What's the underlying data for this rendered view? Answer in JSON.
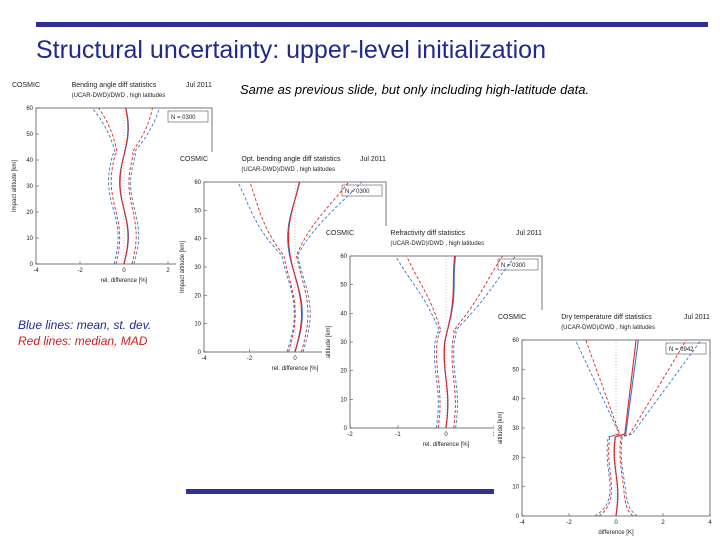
{
  "title": "Structural uncertainty: upper-level initialization",
  "subtitle": "Same as previous slide, but only including high-latitude data.",
  "legend": {
    "blue": "Blue lines: mean, st. dev.",
    "red": "Red lines: median, MAD"
  },
  "colors": {
    "accent": "#2e3192",
    "blue_series": "#3a78c8",
    "red_series": "#d8282b"
  },
  "panels": [
    {
      "id": "p1",
      "label": "COSMIC",
      "title": "Bending angle diff statistics",
      "date": "Jul 2011",
      "sub": "(UCAR-DWD)/DWD , high latitudes",
      "n": "N = 0300",
      "ylabel": "Impact altitude [km]",
      "xlabel": "rel. difference [%]",
      "yticks": [
        "0",
        "10",
        "20",
        "30",
        "40",
        "50",
        "60"
      ],
      "xticks": [
        "-4",
        "-2",
        "0",
        "2",
        "4"
      ]
    },
    {
      "id": "p2",
      "label": "COSMIC",
      "title": "Opt. bending angle diff statistics",
      "date": "Jul 2011",
      "sub": "(UCAR-DWD)/DWD , high latitudes",
      "n": "N = 0300",
      "ylabel": "Impact altitude [km]",
      "xlabel": "rel. difference [%]",
      "yticks": [
        "0",
        "10",
        "20",
        "30",
        "40",
        "50",
        "60"
      ],
      "xticks": [
        "-4",
        "-2",
        "0",
        "2",
        "4"
      ]
    },
    {
      "id": "p3",
      "label": "COSMIC",
      "title": "Refractivity diff statistics",
      "date": "Jul 2011",
      "sub": "(UCAR-DWD)/DWD , high latitudes",
      "n": "N = 0300",
      "ylabel": "altitude [km]",
      "xlabel": "rel. difference [%]",
      "yticks": [
        "0",
        "10",
        "20",
        "30",
        "40",
        "50",
        "60"
      ],
      "xticks": [
        "-2",
        "-1",
        "0",
        "1",
        "2"
      ]
    },
    {
      "id": "p4",
      "label": "COSMIC",
      "title": "Dry temperature diff statistics",
      "date": "Jul 2011",
      "sub": "(UCAR-DWD)/DWD , high latitudes",
      "n": "N = 0942",
      "ylabel": "altitude [km]",
      "xlabel": "difference [K]",
      "yticks": [
        "0",
        "10",
        "20",
        "30",
        "40",
        "50",
        "60"
      ],
      "xticks": [
        "-4",
        "-2",
        "0",
        "2",
        "4"
      ]
    }
  ]
}
